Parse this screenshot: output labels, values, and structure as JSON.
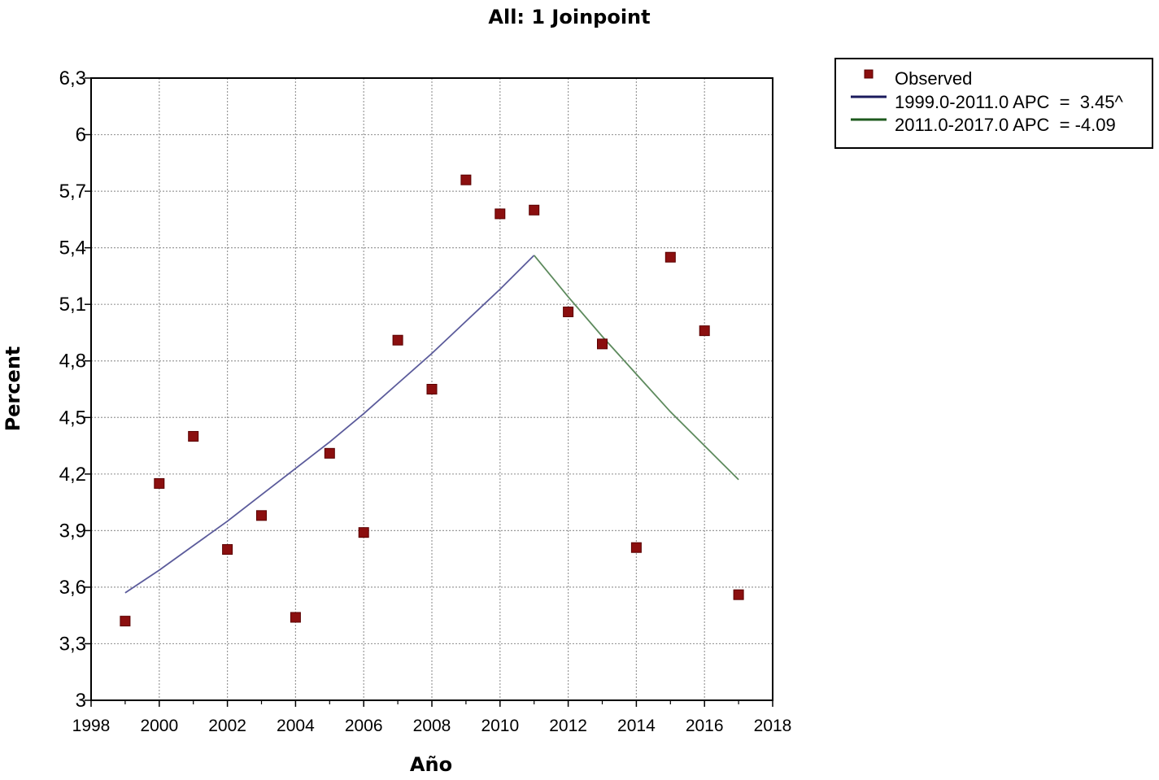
{
  "chart_data": {
    "type": "scatter",
    "title": "All: 1 Joinpoint",
    "xlabel": "Año",
    "ylabel": "Percent",
    "xlim": [
      1998,
      2018
    ],
    "ylim": [
      3,
      6.3
    ],
    "xticks": [
      "1998",
      "2000",
      "2002",
      "2004",
      "2006",
      "2008",
      "2010",
      "2012",
      "2014",
      "2016",
      "2018"
    ],
    "yticks": [
      "3",
      "3,3",
      "3,6",
      "3,9",
      "4,2",
      "4,5",
      "4,8",
      "5,1",
      "5,4",
      "5,7",
      "6",
      "6,3"
    ],
    "ytick_values": [
      3,
      3.3,
      3.6,
      3.9,
      4.2,
      4.5,
      4.8,
      5.1,
      5.4,
      5.7,
      6,
      6.3
    ],
    "grid": true,
    "legend_position": "top-right outside",
    "observed": {
      "name": "Observed",
      "color": "#8b0f0f",
      "x": [
        1999,
        2000,
        2001,
        2002,
        2003,
        2004,
        2005,
        2006,
        2007,
        2008,
        2009,
        2010,
        2011,
        2012,
        2013,
        2014,
        2015,
        2016,
        2017
      ],
      "y": [
        3.42,
        4.15,
        4.4,
        3.8,
        3.98,
        3.44,
        4.31,
        3.89,
        4.91,
        4.65,
        5.76,
        5.58,
        5.6,
        5.06,
        4.89,
        3.81,
        5.35,
        4.96,
        3.56
      ]
    },
    "fits": [
      {
        "name": "1999.0-2011.0 APC  =  3.45^",
        "color": "#5b5b9b",
        "legend_color": "#1a1a5c",
        "x": [
          1999,
          2000,
          2001,
          2002,
          2003,
          2004,
          2005,
          2006,
          2007,
          2008,
          2009,
          2010,
          2011
        ],
        "y": [
          3.57,
          3.69,
          3.82,
          3.95,
          4.09,
          4.23,
          4.37,
          4.52,
          4.68,
          4.84,
          5.01,
          5.18,
          5.36
        ]
      },
      {
        "name": "2011.0-2017.0 APC  = -4.09",
        "color": "#5d8a5d",
        "legend_color": "#1e5a1e",
        "x": [
          2011,
          2012,
          2013,
          2014,
          2015,
          2016,
          2017
        ],
        "y": [
          5.36,
          5.14,
          4.93,
          4.73,
          4.53,
          4.35,
          4.17
        ]
      }
    ]
  }
}
